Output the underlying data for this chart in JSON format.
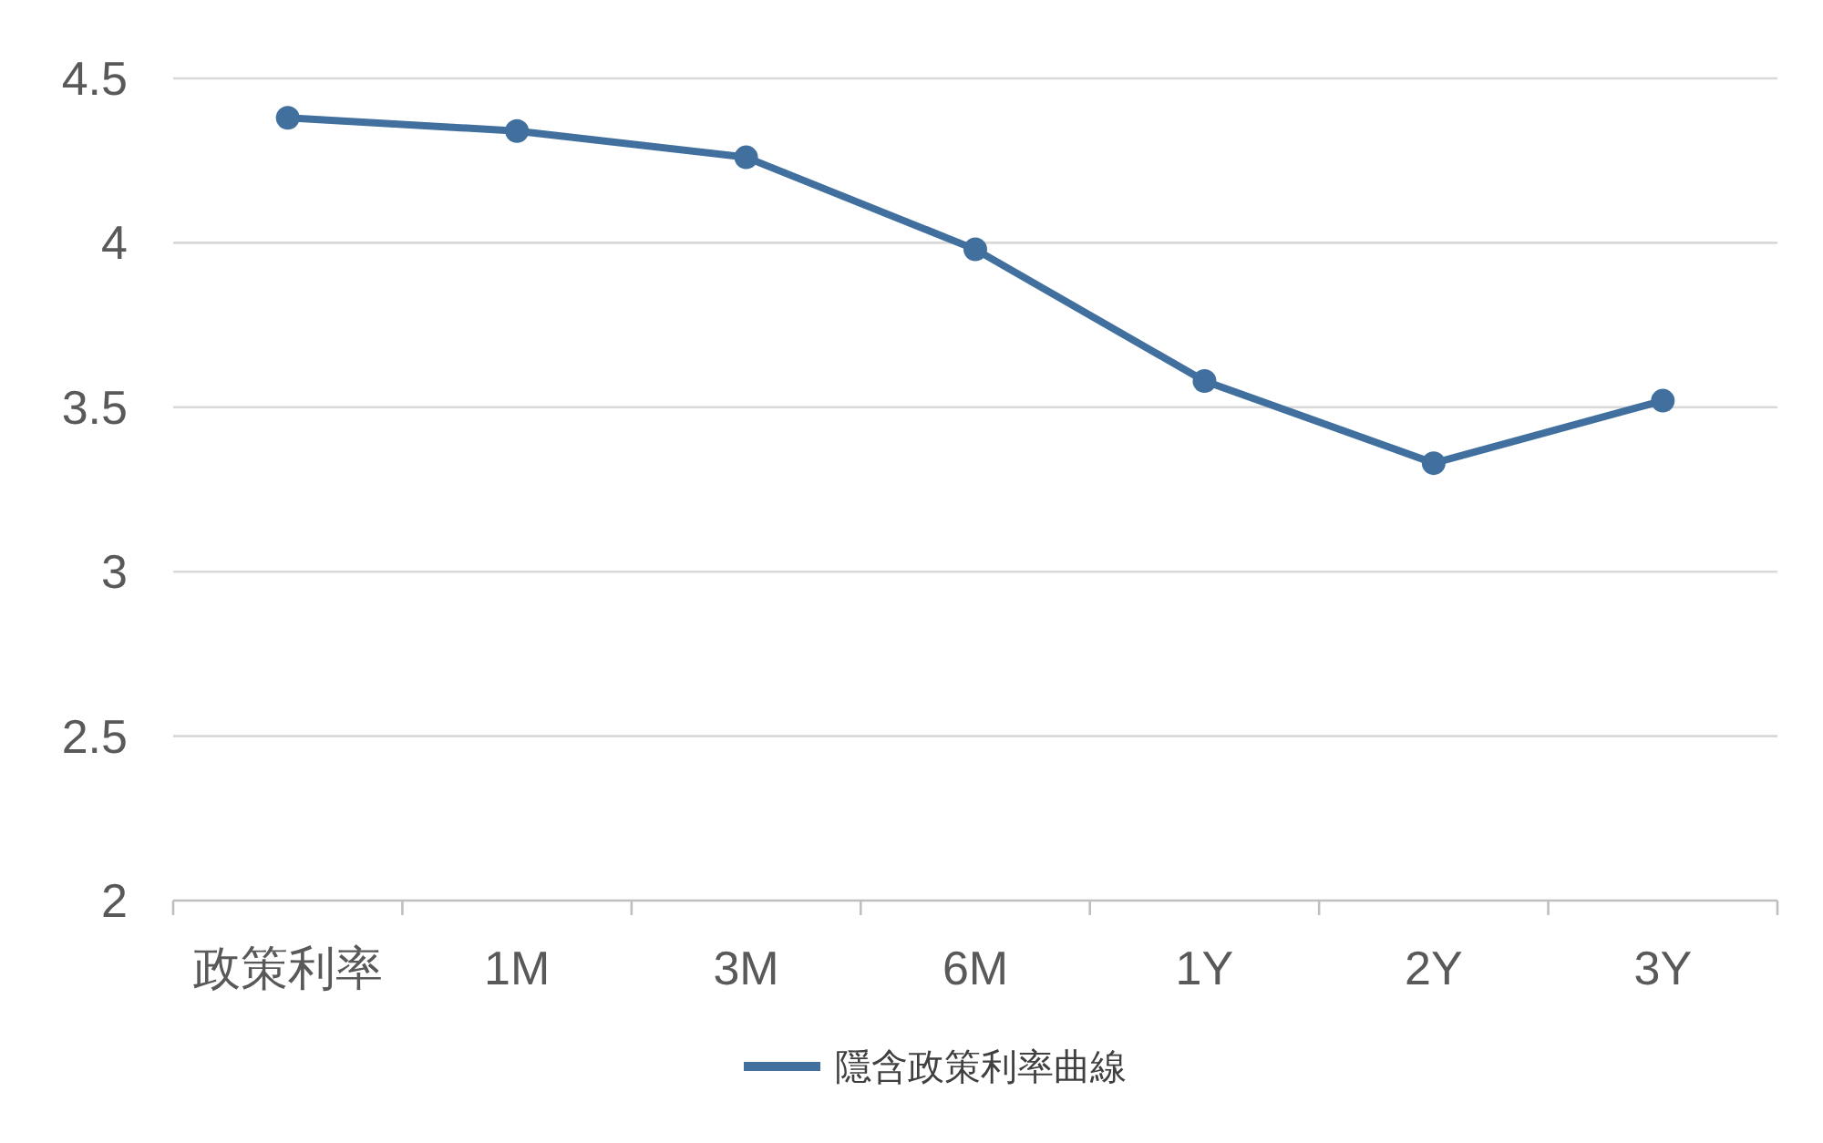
{
  "chart_data": {
    "type": "line",
    "categories": [
      "政策利率",
      "1M",
      "3M",
      "6M",
      "1Y",
      "2Y",
      "3Y"
    ],
    "series": [
      {
        "name": "隱含政策利率曲線",
        "color": "#41709f",
        "values": [
          4.38,
          4.34,
          4.26,
          3.98,
          3.58,
          3.33,
          3.52
        ]
      }
    ],
    "ylim": [
      2,
      4.5
    ],
    "yticks": [
      2,
      2.5,
      3,
      3.5,
      4,
      4.5
    ],
    "grid": "y",
    "legend": "bottom",
    "marker": "circle"
  }
}
